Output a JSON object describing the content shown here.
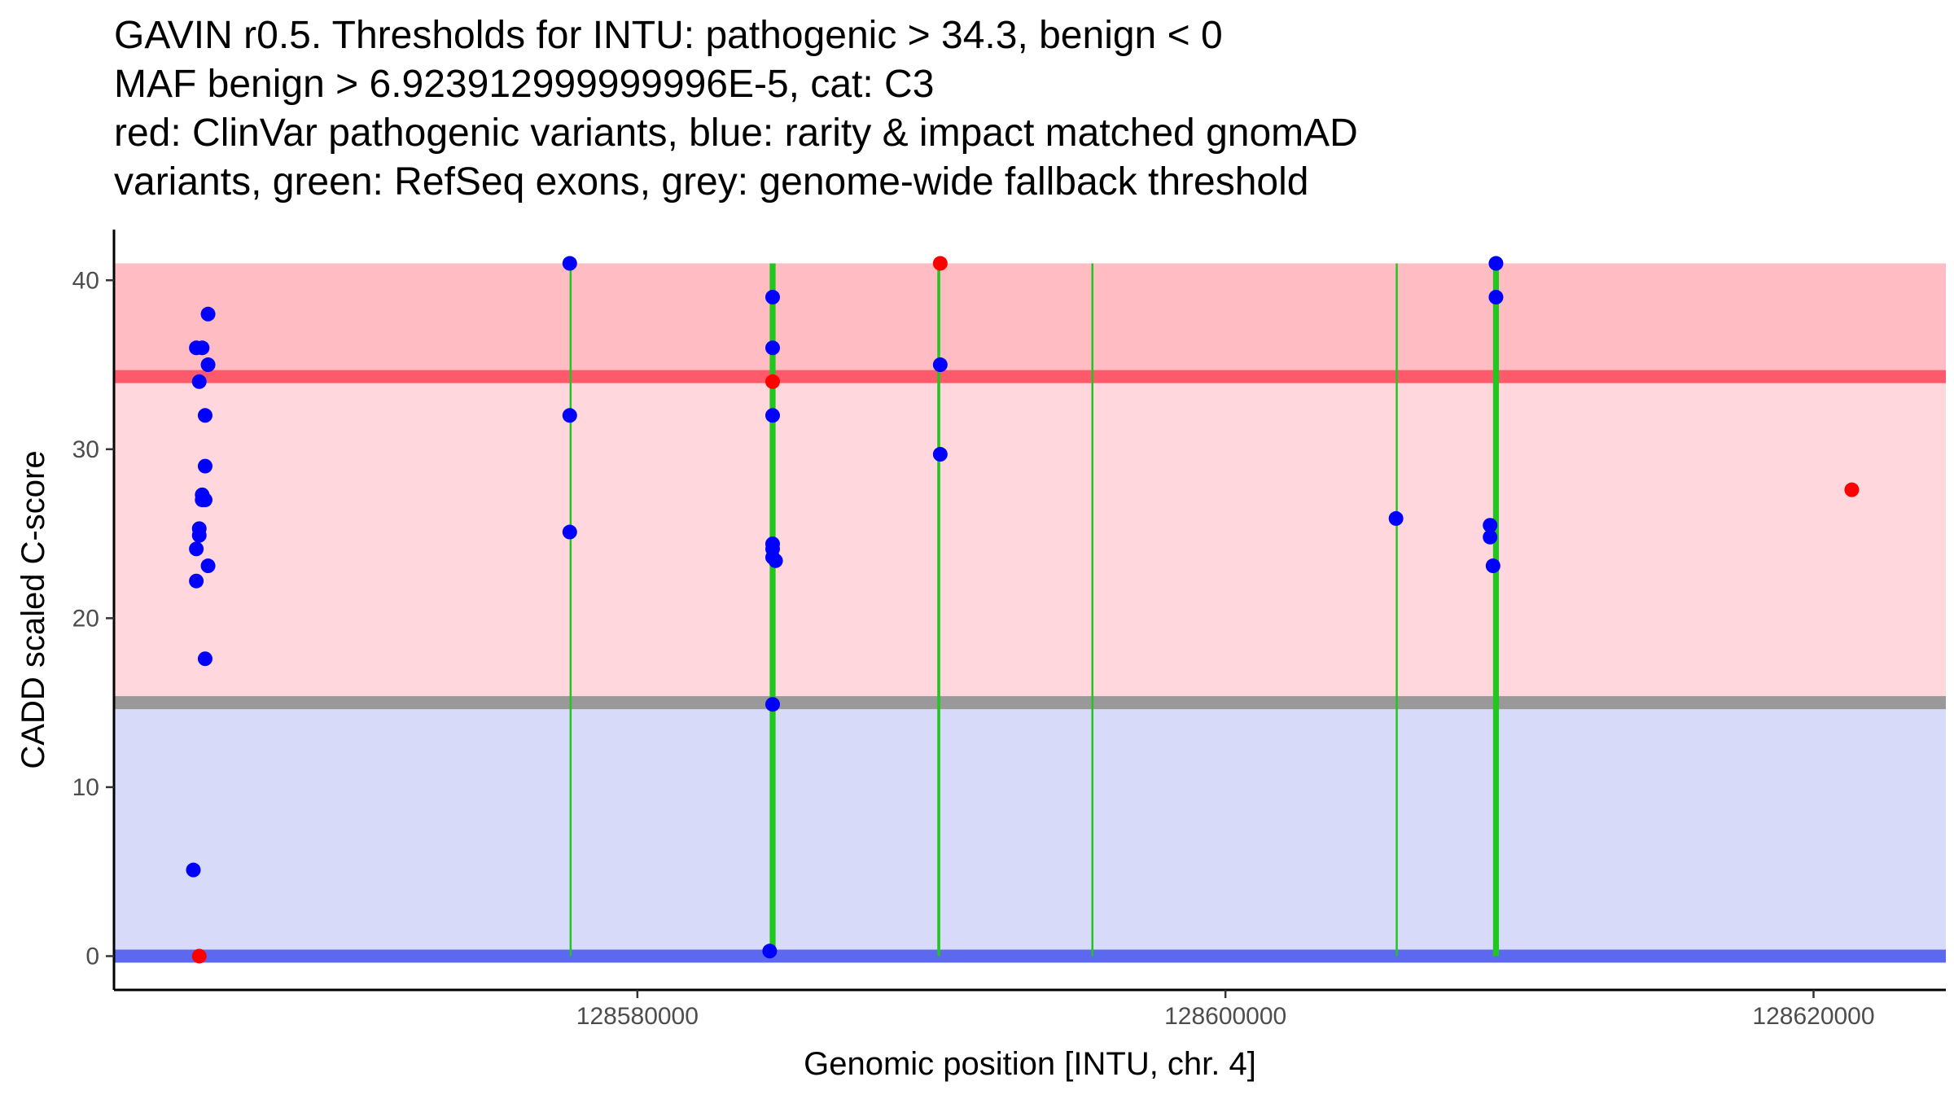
{
  "chart_data": {
    "type": "scatter",
    "title_lines": [
      "GAVIN r0.5. Thresholds for INTU: pathogenic > 34.3, benign < 0",
      "MAF benign > 6.923912999999996E-5, cat: C3",
      "red: ClinVar pathogenic variants, blue: rarity & impact matched gnomAD",
      "variants, green: RefSeq exons, grey: genome-wide fallback threshold"
    ],
    "xlabel": "Genomic position [INTU, chr. 4]",
    "ylabel": "CADD scaled C-score",
    "xlim": [
      128562200,
      128624500
    ],
    "ylim": [
      -2,
      43
    ],
    "x_ticks": [
      128580000,
      128600000,
      128620000
    ],
    "x_tick_labels": [
      "128580000",
      "128600000",
      "128620000"
    ],
    "y_ticks": [
      0,
      10,
      20,
      30,
      40
    ],
    "y_tick_labels": [
      "0",
      "10",
      "20",
      "30",
      "40"
    ],
    "bands": [
      {
        "name": "pathogenic-region",
        "y_from": 34.3,
        "y_to": 41,
        "color": "#ffbcc3"
      },
      {
        "name": "intermediate-region",
        "y_from": 15,
        "y_to": 34.3,
        "color": "#ffd7dc"
      },
      {
        "name": "benign-region",
        "y_from": 0,
        "y_to": 15,
        "color": "#d7daf9"
      }
    ],
    "threshold_lines": [
      {
        "name": "pathogenic-threshold-line",
        "y": 34.3,
        "color": "#fe5a6b"
      },
      {
        "name": "fallback-threshold-line",
        "y": 15,
        "color": "#999999"
      },
      {
        "name": "benign-threshold-line",
        "y": 0,
        "color": "#5b68ef"
      }
    ],
    "exons": [
      {
        "start": 128577700,
        "end": 128577760
      },
      {
        "start": 128584500,
        "end": 128584700
      },
      {
        "start": 128590200,
        "end": 128590300
      },
      {
        "start": 128595450,
        "end": 128595500
      },
      {
        "start": 128605800,
        "end": 128605850
      },
      {
        "start": 128609100,
        "end": 128609300
      }
    ],
    "exon_y_range": [
      0,
      41
    ],
    "series": [
      {
        "name": "ClinVar pathogenic variants",
        "color": "#ff0000",
        "points": [
          {
            "x": 128565100,
            "y": 0
          },
          {
            "x": 128584600,
            "y": 34
          },
          {
            "x": 128590300,
            "y": 41
          },
          {
            "x": 128621300,
            "y": 27.6
          }
        ]
      },
      {
        "name": "gnomAD variants",
        "color": "#0000ff",
        "points": [
          {
            "x": 128565400,
            "y": 38
          },
          {
            "x": 128565000,
            "y": 36
          },
          {
            "x": 128565200,
            "y": 36
          },
          {
            "x": 128565400,
            "y": 35
          },
          {
            "x": 128565100,
            "y": 34
          },
          {
            "x": 128565300,
            "y": 32
          },
          {
            "x": 128565300,
            "y": 29
          },
          {
            "x": 128565200,
            "y": 27.3
          },
          {
            "x": 128565200,
            "y": 27
          },
          {
            "x": 128565300,
            "y": 27
          },
          {
            "x": 128565100,
            "y": 25.3
          },
          {
            "x": 128565100,
            "y": 24.9
          },
          {
            "x": 128565000,
            "y": 24.1
          },
          {
            "x": 128565400,
            "y": 23.1
          },
          {
            "x": 128565000,
            "y": 22.2
          },
          {
            "x": 128565300,
            "y": 17.6
          },
          {
            "x": 128564900,
            "y": 5.1
          },
          {
            "x": 128577700,
            "y": 41
          },
          {
            "x": 128577700,
            "y": 32
          },
          {
            "x": 128577700,
            "y": 25.1
          },
          {
            "x": 128584600,
            "y": 39
          },
          {
            "x": 128584600,
            "y": 36
          },
          {
            "x": 128584600,
            "y": 32
          },
          {
            "x": 128584600,
            "y": 24.4
          },
          {
            "x": 128584600,
            "y": 24.1
          },
          {
            "x": 128584600,
            "y": 23.6
          },
          {
            "x": 128584700,
            "y": 23.4
          },
          {
            "x": 128584600,
            "y": 14.9
          },
          {
            "x": 128584500,
            "y": 0.3
          },
          {
            "x": 128590300,
            "y": 35
          },
          {
            "x": 128590300,
            "y": 29.7
          },
          {
            "x": 128605800,
            "y": 25.9
          },
          {
            "x": 128609000,
            "y": 25.5
          },
          {
            "x": 128609000,
            "y": 24.8
          },
          {
            "x": 128609200,
            "y": 41
          },
          {
            "x": 128609200,
            "y": 39
          },
          {
            "x": 128609100,
            "y": 23.1
          }
        ]
      }
    ]
  }
}
